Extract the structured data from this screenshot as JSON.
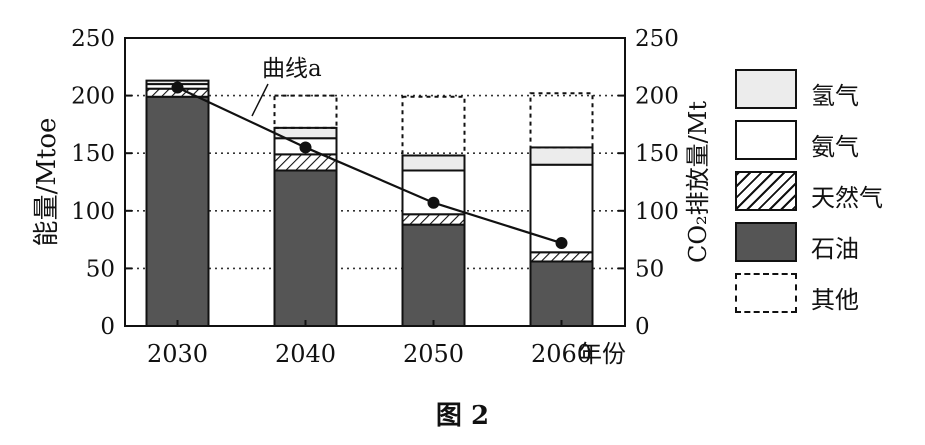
{
  "chart_data": {
    "type": "bar",
    "categories": [
      "2030",
      "2040",
      "2050",
      "2060"
    ],
    "x_unit_label": "年份",
    "ylabel": "能量/Mtoe",
    "ylabel_right": "CO₂排放量/Mt",
    "ylim": [
      0,
      250
    ],
    "yticks": [
      0,
      50,
      100,
      150,
      200,
      250
    ],
    "ylim_right": [
      0,
      250
    ],
    "yticks_right": [
      0,
      50,
      100,
      150,
      200,
      250
    ],
    "grid": "horizontal dotted",
    "stacked": true,
    "series": [
      {
        "name": "石油",
        "values": [
          199,
          135,
          88,
          56
        ]
      },
      {
        "name": "天然气",
        "values": [
          7,
          14,
          9,
          8
        ]
      },
      {
        "name": "氨气",
        "values": [
          4,
          14,
          38,
          76
        ]
      },
      {
        "name": "氢气",
        "values": [
          3,
          9,
          13,
          15
        ]
      },
      {
        "name": "其他",
        "values": [
          0,
          28,
          51,
          47
        ]
      }
    ],
    "line_series": {
      "values": [
        207,
        155,
        107,
        72
      ],
      "axis": "right"
    },
    "annotation": "曲线a",
    "legend_position": "right"
  },
  "colors": {
    "石油": "#555555",
    "天然气": "hatched",
    "氨气": "#ffffff",
    "氢气": "#ececec",
    "其他": "dashed outline"
  },
  "caption": "图 2"
}
